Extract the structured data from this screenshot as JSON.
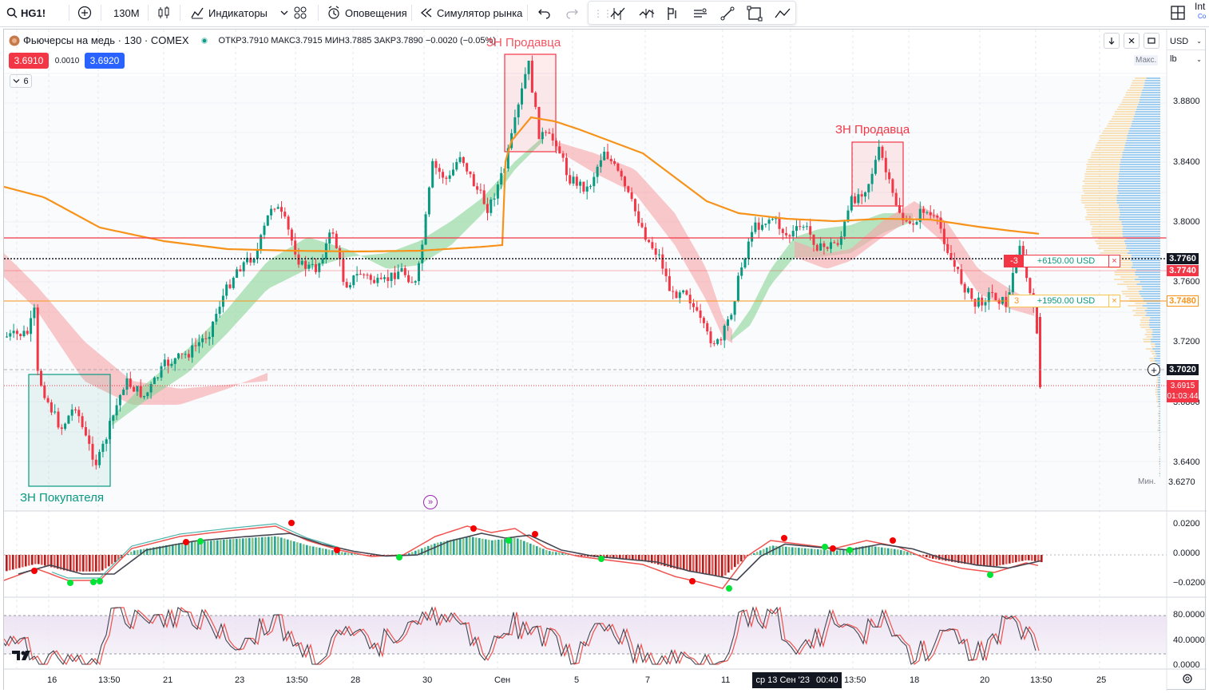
{
  "toolbar": {
    "symbol": "HG1!",
    "interval": "130М",
    "indicators": "Индикаторы",
    "alerts": "Оповещения",
    "replay": "Симулятор рынка",
    "right_clip": "Int",
    "right_clip2": "Co"
  },
  "legend": {
    "title": "Фьючерсы на медь · 130 · COMEX",
    "ohlc": "ОТКР3.7910 МАКС3.7915 МИН3.7885 ЗАКР3.7890 −0.0020 (−0.05%)",
    "sell_price": "3.6910",
    "spread": "0.0010",
    "buy_price": "3.6920",
    "collapse": "6"
  },
  "scale": {
    "currency": "USD",
    "unit": "lb",
    "max_label": "Макс.",
    "min_label": "Мин.",
    "min_value": "3.6270"
  },
  "price_axis": [
    "3.8800",
    "3.8400",
    "3.8000",
    "3.7600",
    "3.7200",
    "3.6800",
    "3.6400"
  ],
  "price_tags": {
    "line1": "3.7760",
    "line2": "3.7740",
    "line3": "3.7480",
    "cross": "3.7020",
    "last": "3.6915",
    "countdown": "01:03:44"
  },
  "positions": [
    {
      "qty": "-3",
      "pnl": "+6150.00 USD",
      "close": "×"
    },
    {
      "qty": "3",
      "pnl": "+1950.00 USD",
      "close": "×"
    }
  ],
  "annotations": {
    "sell_zone_1": "ЗН Продавца",
    "sell_zone_2": "ЗН Продавца",
    "buy_zone": "ЗН Покупателя"
  },
  "macd_axis": [
    "0.0200",
    "0.0000",
    "−0.0200"
  ],
  "stoch_axis": [
    "80.0000",
    "40.0000",
    "0.0000"
  ],
  "time_axis": [
    "16",
    "13:50",
    "21",
    "23",
    "13:50",
    "28",
    "30",
    "Сен",
    "5",
    "7",
    "11",
    "13:50",
    "18",
    "20",
    "13:50",
    "25"
  ],
  "time_cursor": {
    "date": "ср 13 Сен '23",
    "time": "00:40"
  },
  "colors": {
    "bull": "#089981",
    "bear": "#f23645",
    "ma_orange": "#f7931a",
    "band_green": "#8bd59a",
    "band_red": "#f7a6a9",
    "accent_blue": "#2962ff"
  }
}
